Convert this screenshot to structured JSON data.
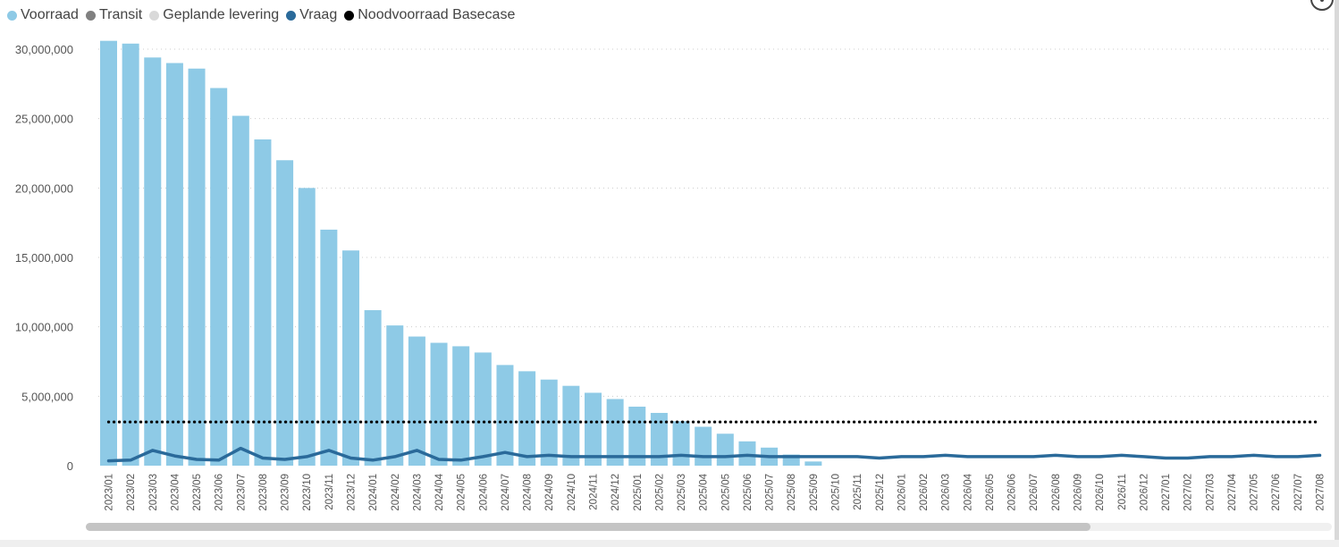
{
  "legend": {
    "items": [
      {
        "label": "Voorraad",
        "color": "#8ecae6"
      },
      {
        "label": "Transit",
        "color": "#808080"
      },
      {
        "label": "Geplande levering",
        "color": "#d9d9d9"
      },
      {
        "label": "Vraag",
        "color": "#2a6a9a"
      },
      {
        "label": "Noodvoorraad Basecase",
        "color": "#000000"
      }
    ]
  },
  "chart_data": {
    "type": "bar",
    "categories": [
      "2023/01",
      "2023/02",
      "2023/03",
      "2023/04",
      "2023/05",
      "2023/06",
      "2023/07",
      "2023/08",
      "2023/09",
      "2023/10",
      "2023/11",
      "2023/12",
      "2024/01",
      "2024/02",
      "2024/03",
      "2024/04",
      "2024/05",
      "2024/06",
      "2024/07",
      "2024/08",
      "2024/09",
      "2024/10",
      "2024/11",
      "2024/12",
      "2025/01",
      "2025/02",
      "2025/03",
      "2025/04",
      "2025/05",
      "2025/06",
      "2025/07",
      "2025/08",
      "2025/09",
      "2025/10",
      "2025/11",
      "2025/12",
      "2026/01",
      "2026/02",
      "2026/03",
      "2026/04",
      "2026/05",
      "2026/06",
      "2026/07",
      "2026/08",
      "2026/09",
      "2026/10",
      "2026/11",
      "2026/12",
      "2027/01",
      "2027/02",
      "2027/03",
      "2027/04",
      "2027/05",
      "2027/06",
      "2027/07",
      "2027/08"
    ],
    "series": [
      {
        "name": "Voorraad",
        "type": "bar",
        "color": "#8ecae6",
        "values": [
          30600000,
          30400000,
          29400000,
          29000000,
          28600000,
          27200000,
          25200000,
          23500000,
          22000000,
          20000000,
          17000000,
          15500000,
          11200000,
          10100000,
          9300000,
          8850000,
          8600000,
          8150000,
          7250000,
          6800000,
          6200000,
          5750000,
          5250000,
          4800000,
          4250000,
          3800000,
          3200000,
          2800000,
          2300000,
          1750000,
          1300000,
          800000,
          300000,
          0,
          0,
          0,
          0,
          0,
          0,
          0,
          0,
          0,
          0,
          0,
          0,
          0,
          0,
          0,
          0,
          0,
          0,
          0,
          0,
          0,
          0,
          0
        ]
      },
      {
        "name": "Vraag",
        "type": "line",
        "color": "#2a6a9a",
        "values": [
          350000,
          400000,
          1100000,
          700000,
          450000,
          400000,
          1250000,
          550000,
          450000,
          650000,
          1100000,
          550000,
          400000,
          650000,
          1100000,
          450000,
          400000,
          650000,
          950000,
          650000,
          750000,
          650000,
          650000,
          650000,
          650000,
          650000,
          750000,
          650000,
          650000,
          750000,
          650000,
          650000,
          650000,
          650000,
          650000,
          550000,
          650000,
          650000,
          750000,
          650000,
          650000,
          650000,
          650000,
          750000,
          650000,
          650000,
          750000,
          650000,
          550000,
          550000,
          650000,
          650000,
          750000,
          650000,
          650000,
          750000
        ]
      },
      {
        "name": "Noodvoorraad Basecase",
        "type": "dotted-line",
        "color": "#000000",
        "value": 3150000
      }
    ],
    "y_ticks": [
      "30,000,000",
      "25,000,000",
      "20,000,000",
      "15,000,000",
      "10,000,000",
      "5,000,000",
      "0"
    ],
    "y_tick_values": [
      30000000,
      25000000,
      20000000,
      15000000,
      10000000,
      5000000,
      0
    ],
    "ylim": [
      0,
      31000000
    ],
    "grid": true,
    "legend_position": "top-left"
  }
}
